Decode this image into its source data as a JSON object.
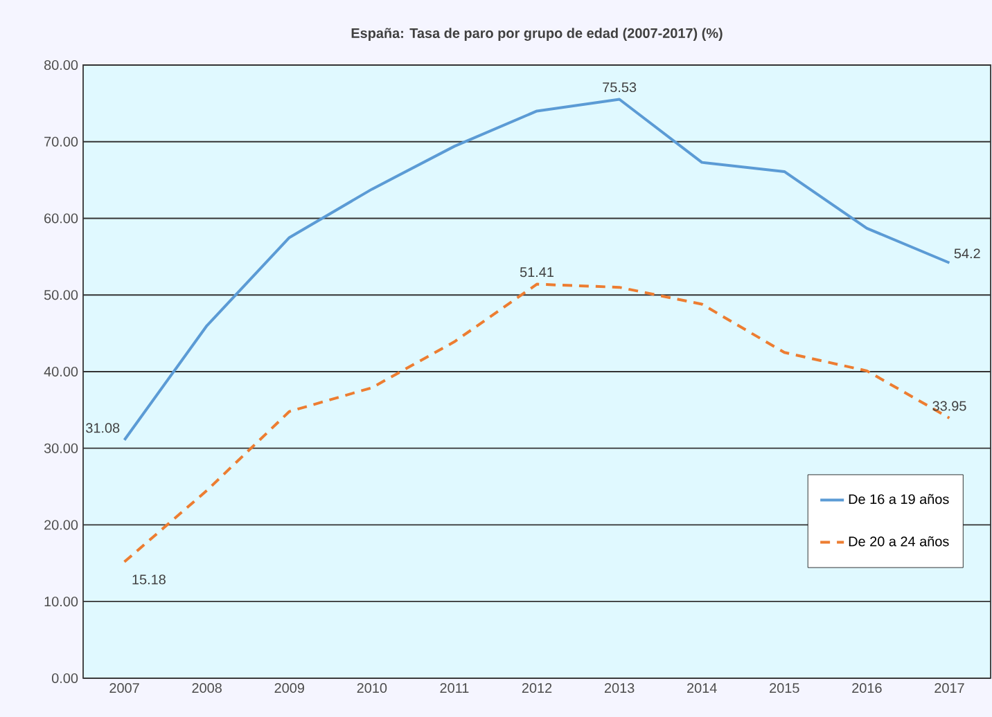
{
  "chart_data": {
    "type": "line",
    "title": "España: Tasa de paro por grupo de edad (2007-2017) (%)",
    "categories": [
      "2007",
      "2008",
      "2009",
      "2010",
      "2011",
      "2012",
      "2013",
      "2014",
      "2015",
      "2016",
      "2017"
    ],
    "series": [
      {
        "name": "De 16 a 19 años",
        "color": "#5b9bd5",
        "line_style": "solid",
        "values": [
          31.08,
          46.0,
          57.5,
          63.8,
          69.4,
          74.0,
          75.53,
          67.3,
          66.1,
          58.7,
          54.2
        ],
        "value_labels": [
          "31.08",
          null,
          null,
          null,
          null,
          null,
          "75.53",
          null,
          null,
          null,
          "54.2"
        ]
      },
      {
        "name": "De 20 a 24 años",
        "color": "#ed7d31",
        "line_style": "dashed",
        "values": [
          15.18,
          24.5,
          34.8,
          37.9,
          43.9,
          51.41,
          51.0,
          48.8,
          42.5,
          40.1,
          33.95
        ],
        "value_labels": [
          "15.18",
          null,
          null,
          null,
          null,
          "51.41",
          null,
          null,
          null,
          null,
          "33.95"
        ]
      }
    ],
    "ylim": [
      0,
      80
    ],
    "yticks": [
      {
        "value": 0,
        "label": "0.00"
      },
      {
        "value": 10,
        "label": "10.00"
      },
      {
        "value": 20,
        "label": "20.00"
      },
      {
        "value": 30,
        "label": "30.00"
      },
      {
        "value": 40,
        "label": "40.00"
      },
      {
        "value": 50,
        "label": "50.00"
      },
      {
        "value": 60,
        "label": "60.00"
      },
      {
        "value": 70,
        "label": "70.00"
      },
      {
        "value": 80,
        "label": "80.00"
      }
    ],
    "grid": "y",
    "legend": "bottom right",
    "marker": "none"
  }
}
